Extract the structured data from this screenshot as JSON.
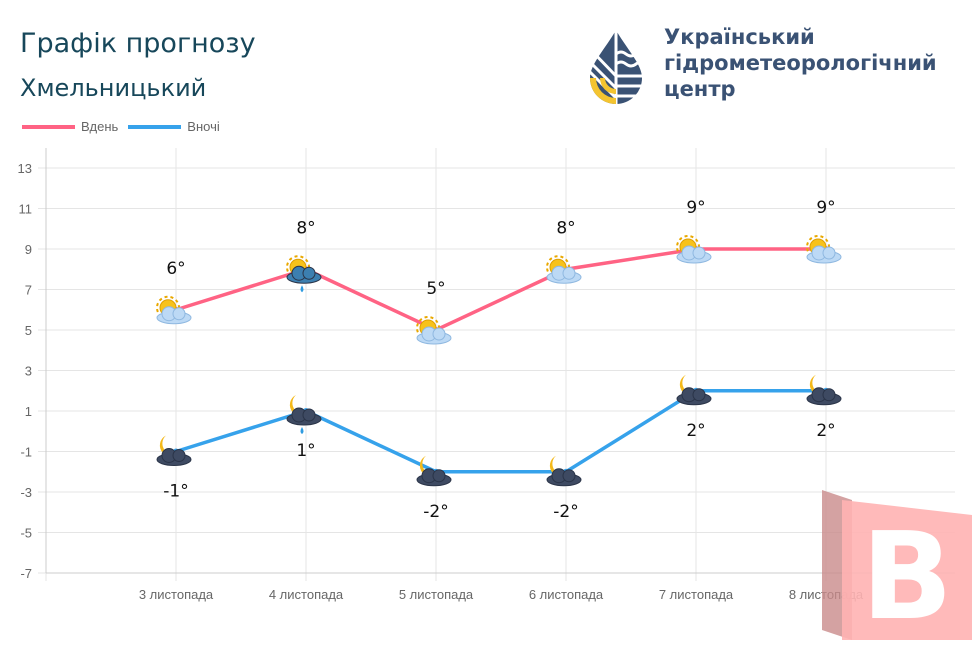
{
  "header": {
    "title": "Графік прогнозу",
    "city": "Хмельницький"
  },
  "logo": {
    "lines": [
      "Український",
      "гідрометеорологічний",
      "центр"
    ]
  },
  "chart_data": {
    "type": "line",
    "categories": [
      "3 листопада",
      "4 листопада",
      "5 листопада",
      "6 листопада",
      "7 листопада",
      "8 листопада"
    ],
    "series": [
      {
        "name": "Вдень",
        "color": "#ff6384",
        "values": [
          6,
          8,
          5,
          8,
          9,
          9
        ],
        "labels": [
          "6°",
          "8°",
          "5°",
          "8°",
          "9°",
          "9°"
        ],
        "icons": [
          "sun-cloud",
          "sun-rain-cloud",
          "sun-cloud",
          "sun-cloud",
          "sun-cloud",
          "sun-cloud"
        ]
      },
      {
        "name": "Вночі",
        "color": "#36a2eb",
        "values": [
          -1,
          1,
          -2,
          -2,
          2,
          2
        ],
        "labels": [
          "-1°",
          "1°",
          "-2°",
          "-2°",
          "2°",
          "2°"
        ],
        "icons": [
          "moon-cloud",
          "moon-rain-cloud",
          "moon-cloud",
          "moon-cloud",
          "moon-cloud",
          "moon-cloud"
        ]
      }
    ],
    "yticks": [
      13,
      11,
      9,
      7,
      5,
      3,
      1,
      -1,
      -3,
      -5,
      -7
    ],
    "ylim": [
      -7,
      13
    ],
    "grid": true,
    "legend": "top-left"
  }
}
